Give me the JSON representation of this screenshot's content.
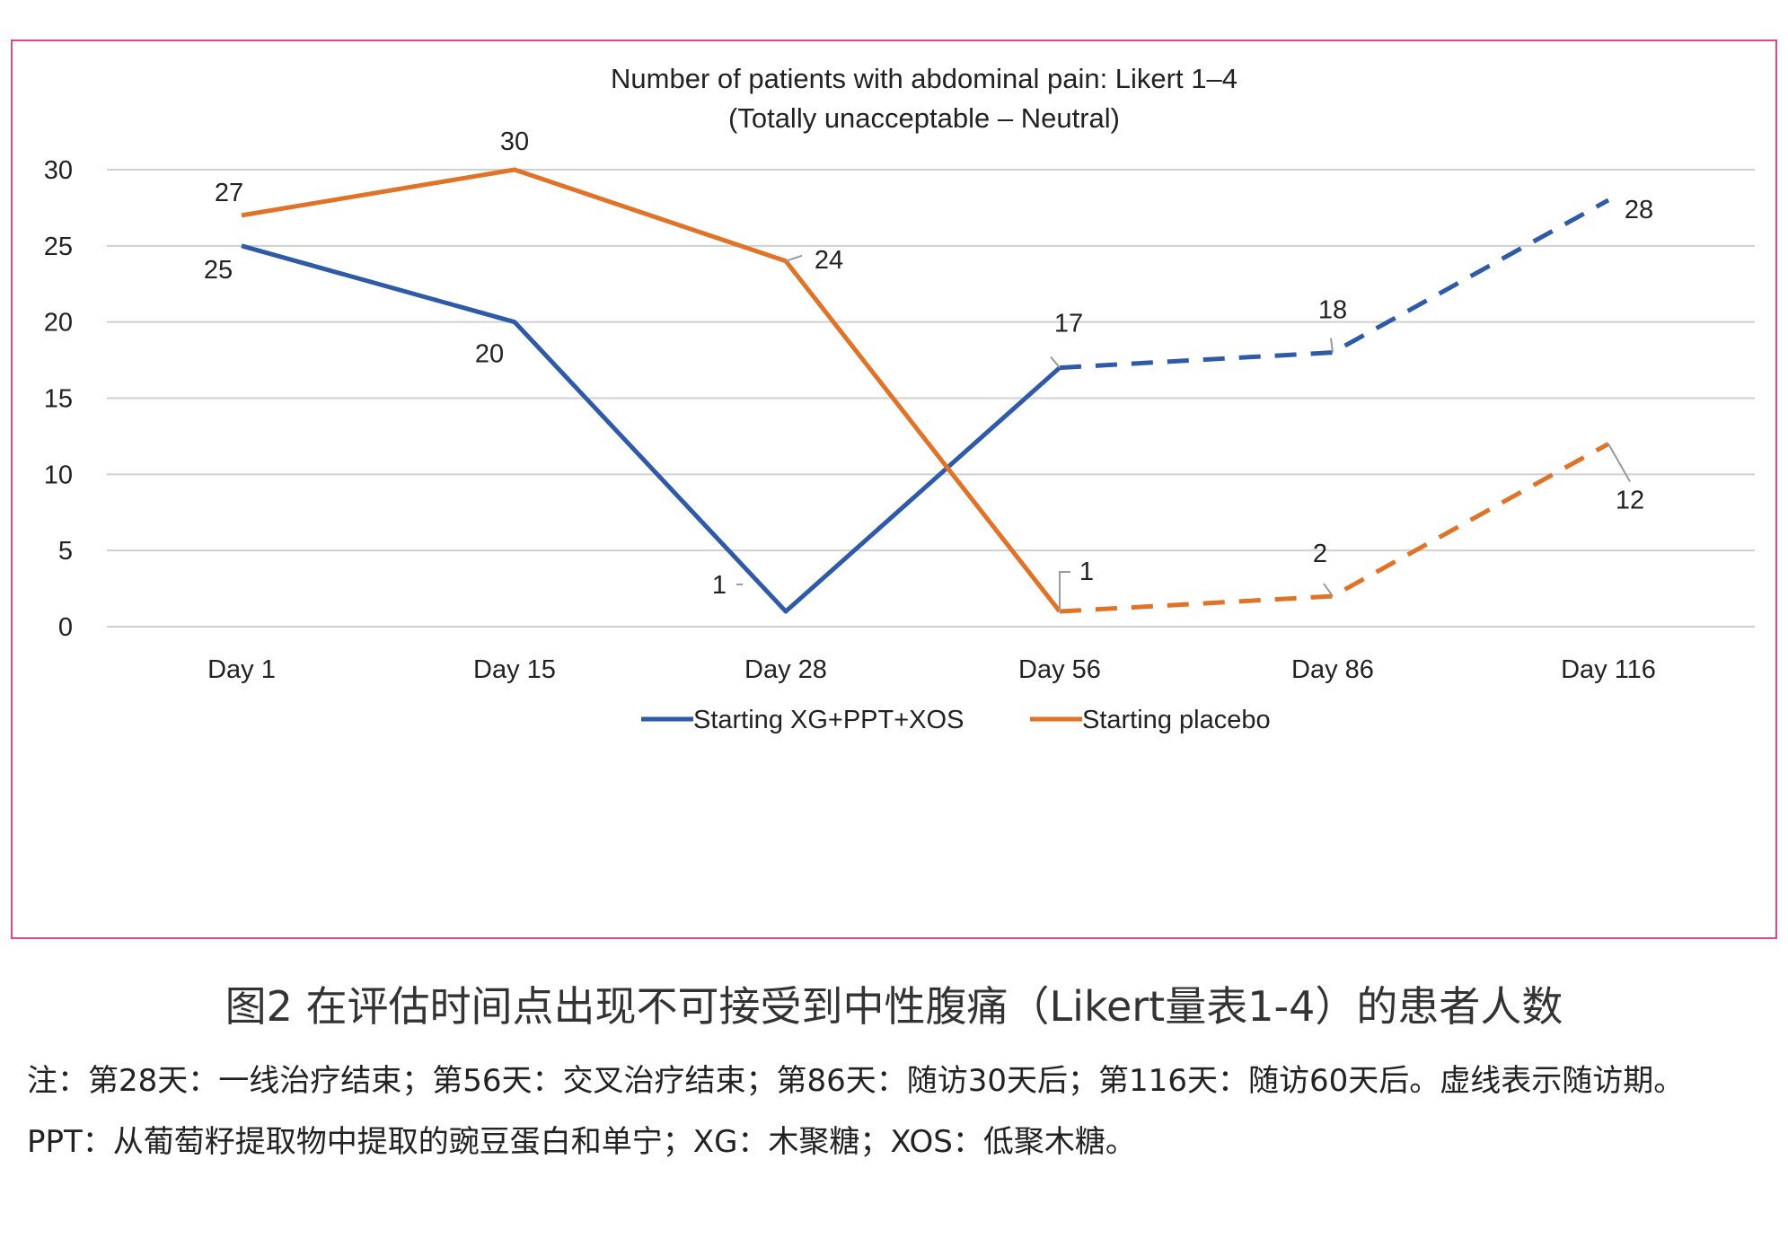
{
  "chart_data": {
    "type": "line",
    "title": [
      "Number of patients with abdominal pain: Likert 1–4",
      "(Totally unacceptable – Neutral)"
    ],
    "categories": [
      "Day 1",
      "Day 15",
      "Day 28",
      "Day 56",
      "Day 86",
      "Day 116"
    ],
    "ylim": [
      0,
      30
    ],
    "yticks": [
      0,
      5,
      10,
      15,
      20,
      25,
      30
    ],
    "grid": true,
    "legend_position": "bottom",
    "series": [
      {
        "name": "Starting XG+PPT+XOS",
        "color": "#2e5aa8",
        "values": [
          25,
          20,
          1,
          17,
          18,
          28
        ],
        "dashed_from_index": 3,
        "labels": [
          "25",
          "20",
          "1",
          "17",
          "18",
          "28"
        ]
      },
      {
        "name": "Starting placebo",
        "color": "#e07327",
        "values": [
          27,
          30,
          24,
          1,
          2,
          12
        ],
        "dashed_from_index": 3,
        "labels": [
          "27",
          "30",
          "24",
          "1",
          "2",
          "12"
        ]
      }
    ]
  },
  "caption": "图2 在评估时间点出现不可接受到中性腹痛（Likert量表1-4）的患者人数",
  "note": "注：第28天：一线治疗结束；第56天：交叉治疗结束；第86天：随访30天后；第116天：随访60天后。虚线表示随访期。PPT：从葡萄籽提取物中提取的豌豆蛋白和单宁；XG：木聚糖；XOS：低聚木糖。"
}
